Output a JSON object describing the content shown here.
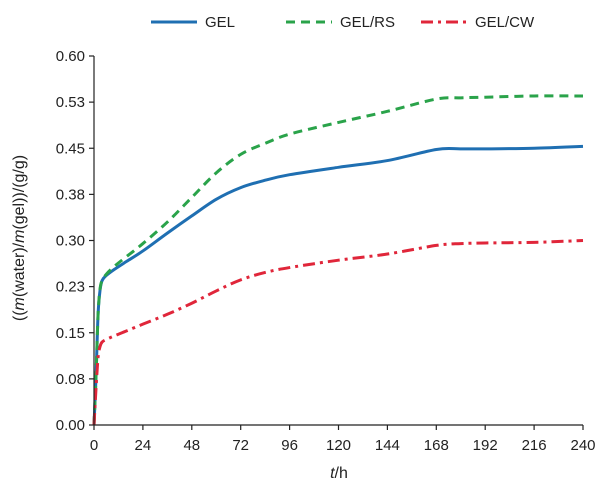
{
  "chart_data": {
    "type": "line",
    "title": "",
    "xlabel": {
      "var": "t",
      "unit": "/h"
    },
    "ylabel": {
      "open": "((",
      "m1": "m",
      "p1": "(water)/",
      "m2": "m",
      "p2": "(gel))/(g/g)"
    },
    "xlim": [
      0,
      240
    ],
    "ylim": [
      0,
      0.6
    ],
    "xticks": [
      0,
      24,
      48,
      72,
      96,
      120,
      144,
      168,
      192,
      216,
      240
    ],
    "xtick_labels": [
      "0",
      "24",
      "48",
      "72",
      "96",
      "120",
      "144",
      "168",
      "192",
      "216",
      "240"
    ],
    "yticks": [
      0,
      0.075,
      0.15,
      0.225,
      0.3,
      0.375,
      0.45,
      0.525,
      0.6
    ],
    "ytick_labels": [
      "0.00",
      "0.08",
      "0.15",
      "0.23",
      "0.30",
      "0.38",
      "0.45",
      "0.53",
      "0.60"
    ],
    "grid": false,
    "legend_position": "top",
    "series": [
      {
        "name": "GEL",
        "color": "#1f6fb2",
        "dash": "solid",
        "x": [
          0,
          1,
          2,
          3,
          4,
          6,
          10,
          16,
          24,
          36,
          48,
          60,
          72,
          84,
          96,
          120,
          144,
          168,
          180,
          192,
          216,
          240
        ],
        "y": [
          0,
          0.08,
          0.18,
          0.22,
          0.235,
          0.243,
          0.253,
          0.266,
          0.283,
          0.312,
          0.34,
          0.367,
          0.386,
          0.398,
          0.407,
          0.419,
          0.43,
          0.448,
          0.449,
          0.449,
          0.45,
          0.453
        ]
      },
      {
        "name": "GEL/RS",
        "color": "#2aa34a",
        "dash": "dashed",
        "x": [
          0,
          1,
          2,
          3,
          4,
          6,
          10,
          16,
          24,
          36,
          48,
          60,
          72,
          84,
          96,
          120,
          144,
          168,
          180,
          192,
          216,
          240
        ],
        "y": [
          0,
          0.08,
          0.18,
          0.222,
          0.235,
          0.245,
          0.258,
          0.274,
          0.295,
          0.33,
          0.37,
          0.41,
          0.44,
          0.458,
          0.473,
          0.492,
          0.51,
          0.53,
          0.532,
          0.533,
          0.535,
          0.535
        ]
      },
      {
        "name": "GEL/CW",
        "color": "#e0263a",
        "dash": "dashdot",
        "x": [
          0,
          1,
          2,
          3,
          4,
          6,
          10,
          16,
          24,
          36,
          48,
          60,
          72,
          84,
          96,
          120,
          144,
          168,
          180,
          192,
          216,
          240
        ],
        "y": [
          0,
          0.06,
          0.11,
          0.128,
          0.135,
          0.139,
          0.145,
          0.153,
          0.164,
          0.18,
          0.198,
          0.218,
          0.236,
          0.248,
          0.256,
          0.268,
          0.278,
          0.292,
          0.295,
          0.296,
          0.297,
          0.3
        ]
      }
    ]
  }
}
